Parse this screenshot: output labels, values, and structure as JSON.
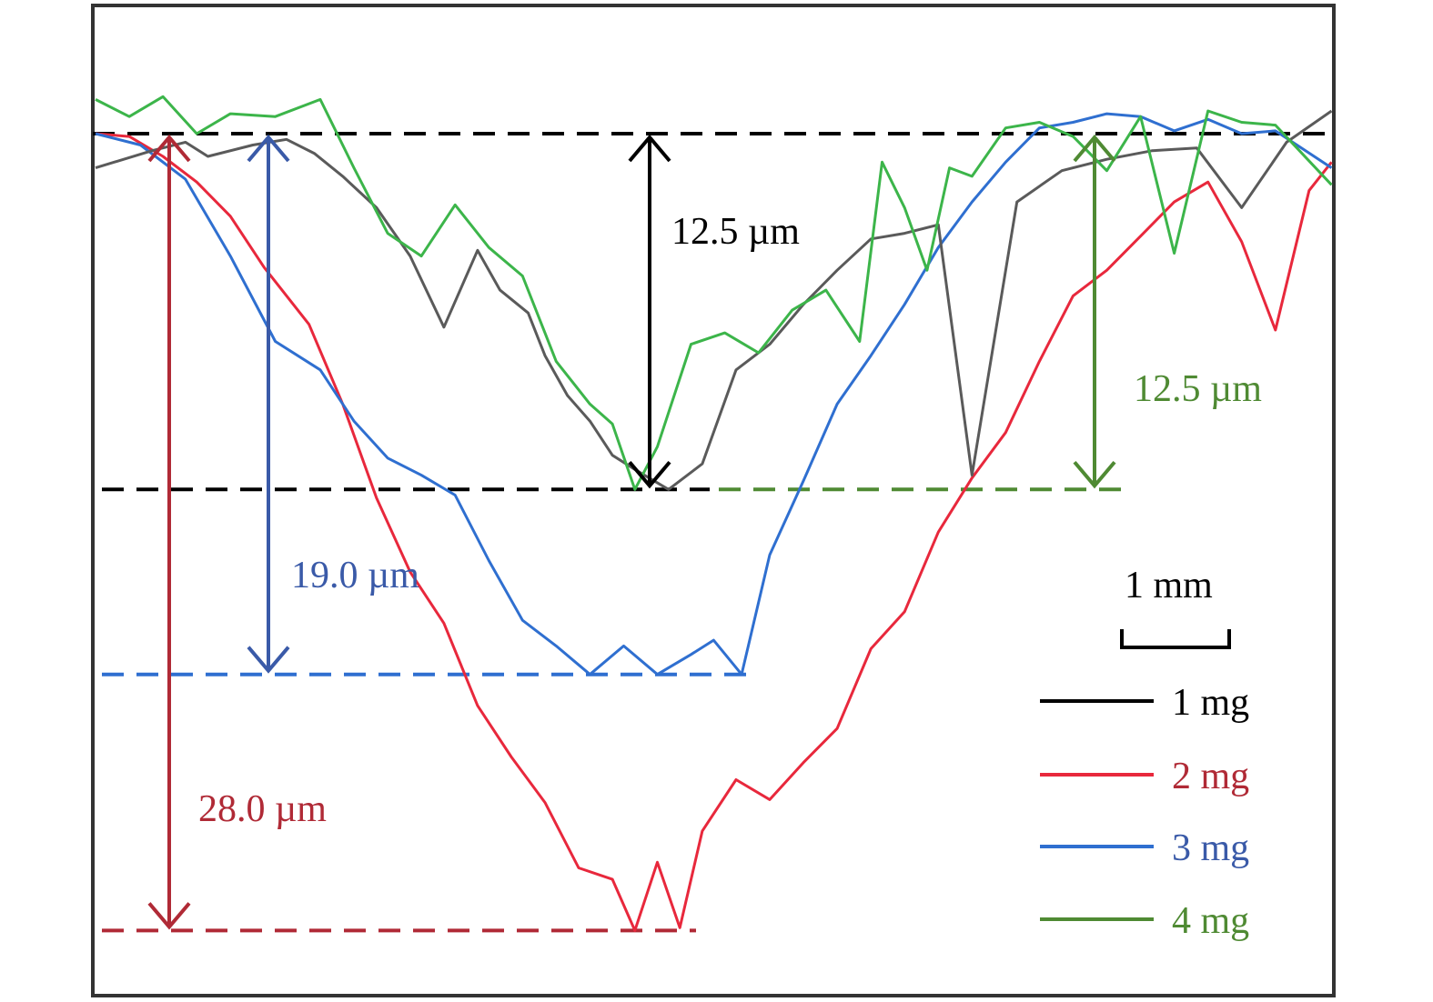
{
  "colors": {
    "1 mg": "#000000",
    "1 mg_line": "#5a5a5a",
    "2 mg": "#e8283c",
    "2 mg_label": "#b02a36",
    "3 mg": "#2f6fd0",
    "3 mg_label": "#3a5aa8",
    "4 mg": "#3cb54a",
    "4 mg_label": "#4f8a33",
    "frame": "#333333"
  },
  "chart_data": {
    "type": "line",
    "x_unit": "mm",
    "y_unit": "µm",
    "scale_bar": {
      "label": "1 mm",
      "length_mm": 1
    },
    "annotations": [
      {
        "series": "1 mg",
        "text": "12.5 µm",
        "depth_um": 12.5
      },
      {
        "series": "4 mg",
        "text": "12.5 µm",
        "depth_um": 12.5
      },
      {
        "series": "3 mg",
        "text": "19.0 µm",
        "depth_um": 19.0
      },
      {
        "series": "2 mg",
        "text": "28.0 µm",
        "depth_um": 28.0
      }
    ],
    "legend": [
      "1 mg",
      "2 mg",
      "3 mg",
      "4 mg"
    ],
    "legend_position": "bottom-right",
    "series": [
      {
        "name": "1 mg",
        "x": [
          0,
          0.5,
          0.8,
          1.0,
          1.4,
          1.7,
          1.95,
          2.2,
          2.5,
          2.8,
          3.1,
          3.4,
          3.6,
          3.85,
          4.0,
          4.2,
          4.4,
          4.6,
          4.8,
          5.1,
          5.4,
          5.7,
          6.0,
          6.3,
          6.6,
          6.9,
          7.2,
          7.5,
          7.8,
          8.2,
          8.6,
          9.0,
          9.4,
          9.8,
          10.2,
          10.6,
          11.0
        ],
        "y": [
          1.2,
          0.6,
          0.3,
          0.8,
          0.4,
          0.2,
          0.7,
          1.5,
          2.6,
          4.3,
          6.8,
          4.1,
          5.5,
          6.3,
          7.8,
          9.2,
          10.1,
          11.3,
          11.8,
          12.5,
          11.6,
          8.3,
          7.4,
          6.0,
          4.8,
          3.7,
          3.5,
          3.2,
          12.0,
          2.4,
          1.3,
          0.9,
          0.6,
          0.5,
          2.6,
          0.3,
          -0.8
        ]
      },
      {
        "name": "2 mg",
        "x": [
          0,
          0.3,
          0.6,
          0.9,
          1.2,
          1.5,
          1.9,
          2.2,
          2.5,
          2.8,
          3.1,
          3.4,
          3.7,
          4.0,
          4.3,
          4.6,
          4.8,
          5.0,
          5.2,
          5.4,
          5.7,
          6.0,
          6.3,
          6.6,
          6.9,
          7.2,
          7.5,
          7.8,
          8.1,
          8.4,
          8.7,
          9.0,
          9.3,
          9.6,
          9.9,
          10.2,
          10.5,
          10.8,
          11.0
        ],
        "y": [
          0,
          0.1,
          0.8,
          1.7,
          2.9,
          4.7,
          6.7,
          9.5,
          12.8,
          15.4,
          17.2,
          20.1,
          21.9,
          23.5,
          25.8,
          26.2,
          28.0,
          25.6,
          27.9,
          24.5,
          22.7,
          23.4,
          22.1,
          20.9,
          18.1,
          16.8,
          14.0,
          12.1,
          10.5,
          8.0,
          5.7,
          4.8,
          3.6,
          2.4,
          1.7,
          3.8,
          6.9,
          2.0,
          1.0
        ]
      },
      {
        "name": "3 mg",
        "x": [
          0,
          0.4,
          0.8,
          1.2,
          1.6,
          2.0,
          2.3,
          2.6,
          2.9,
          3.2,
          3.5,
          3.8,
          4.1,
          4.4,
          4.7,
          5.0,
          5.3,
          5.5,
          5.75,
          6.0,
          6.3,
          6.6,
          6.9,
          7.2,
          7.5,
          7.8,
          8.1,
          8.4,
          8.7,
          9.0,
          9.3,
          9.6,
          9.9,
          10.2,
          10.5,
          11.0
        ],
        "y": [
          0,
          0.4,
          1.6,
          4.3,
          7.3,
          8.3,
          10.1,
          11.4,
          12.0,
          12.7,
          15.0,
          17.1,
          18.0,
          19.0,
          18.0,
          19.0,
          18.3,
          17.8,
          19.0,
          14.8,
          12.2,
          9.5,
          7.8,
          6.0,
          4.0,
          2.4,
          1.0,
          -0.2,
          -0.4,
          -0.7,
          -0.6,
          -0.1,
          -0.5,
          0.0,
          -0.1,
          1.2
        ]
      },
      {
        "name": "4 mg",
        "x": [
          0,
          0.3,
          0.6,
          0.9,
          1.2,
          1.6,
          2.0,
          2.3,
          2.6,
          2.9,
          3.2,
          3.5,
          3.8,
          4.1,
          4.4,
          4.6,
          4.8,
          5.0,
          5.3,
          5.6,
          5.9,
          6.2,
          6.5,
          6.8,
          7.0,
          7.2,
          7.4,
          7.6,
          7.8,
          8.1,
          8.4,
          8.7,
          9.0,
          9.3,
          9.6,
          9.9,
          10.2,
          10.5,
          11.0
        ],
        "y": [
          -1.2,
          -0.6,
          -1.3,
          0.0,
          -0.7,
          -0.6,
          -1.2,
          1.2,
          3.5,
          4.3,
          2.5,
          4.0,
          5.0,
          8.0,
          9.5,
          10.2,
          12.5,
          11.0,
          7.4,
          7.0,
          7.7,
          6.2,
          5.5,
          7.3,
          1.0,
          2.6,
          4.8,
          1.2,
          1.5,
          -0.2,
          -0.4,
          0.1,
          1.3,
          -0.6,
          4.2,
          -0.8,
          -0.4,
          -0.3,
          1.8
        ]
      }
    ],
    "grid": false
  }
}
